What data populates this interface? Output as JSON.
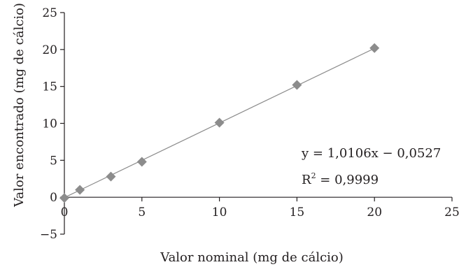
{
  "chart_data": {
    "type": "scatter",
    "xlabel": "Valor nominal (mg de cálcio)",
    "ylabel": "Valor encontrado (mg de cálcio)",
    "xlim": [
      0,
      25
    ],
    "ylim": [
      -5,
      25
    ],
    "x_ticks": [
      0,
      5,
      10,
      15,
      20,
      25
    ],
    "y_ticks": [
      -5,
      0,
      5,
      10,
      15,
      20,
      25
    ],
    "x_tick_labels": [
      "0",
      "5",
      "10",
      "15",
      "20",
      "25"
    ],
    "y_tick_labels": [
      "−5",
      "0",
      "5",
      "10",
      "15",
      "20",
      "25"
    ],
    "grid": false,
    "series": [
      {
        "marker": "diamond",
        "color": "#8c8c8c",
        "x": [
          0,
          1,
          3,
          5,
          10,
          15,
          20
        ],
        "y": [
          -0.1,
          1.0,
          2.8,
          4.8,
          10.1,
          15.2,
          20.2
        ]
      }
    ],
    "trendline": {
      "slope": 1.0106,
      "intercept": -0.0527,
      "x_range": [
        0,
        20
      ],
      "color": "#8c8c8c"
    },
    "equation_text": "y = 1,0106x − 0,0527",
    "r2_prefix": "R",
    "r2_sup": "2",
    "r2_value": " = 0,9999"
  }
}
